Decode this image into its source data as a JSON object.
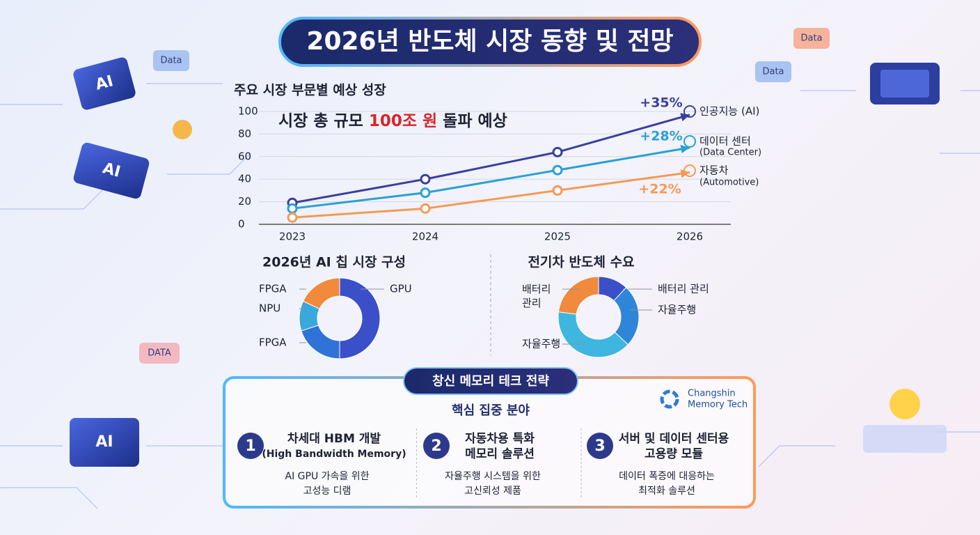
{
  "header": {
    "title": "2026년 반도체 시장 동향 및 전망"
  },
  "decorations": {
    "chip_labels": [
      "AI",
      "AI",
      "AI"
    ],
    "bubble_labels": [
      "Data",
      "DATA",
      "Data",
      "Data"
    ]
  },
  "chart_data": [
    {
      "type": "line",
      "title": "주요 시장 부문별 예상 성장",
      "subtitle": [
        "시장 총 규모 ",
        "100조 원",
        " 돌파 예상"
      ],
      "categories": [
        "2023",
        "2024",
        "2025",
        "2026"
      ],
      "ylim": [
        0,
        100
      ],
      "yticks": [
        0,
        20,
        40,
        60,
        80,
        100
      ],
      "grid": true,
      "series": [
        {
          "name": "인공지능 (AI)",
          "color": "#3b3f9e",
          "values": [
            19,
            40,
            64,
            97
          ],
          "growth_label": "+35%"
        },
        {
          "name": "데이터 센터",
          "name_en": "(Data Center)",
          "color": "#2aa0d4",
          "values": [
            14,
            28,
            48,
            68
          ],
          "growth_label": "+28%"
        },
        {
          "name": "자동차",
          "name_en": "(Automotive)",
          "color": "#f39a55",
          "values": [
            6,
            14,
            30,
            46
          ],
          "growth_label": "+22%"
        }
      ]
    },
    {
      "type": "pie",
      "donut": true,
      "title": "2026년 AI 칩 시장 구성",
      "categories": [
        "GPU",
        "FPGA",
        "NPU",
        "FPGA"
      ],
      "values": [
        50,
        20,
        12,
        18
      ],
      "colors": [
        "#3a4fc8",
        "#2f72d8",
        "#3aa8dc",
        "#f08a3c"
      ]
    },
    {
      "type": "pie",
      "donut": true,
      "title": "전기차 반도체 수요",
      "categories": [
        "배터리 관리",
        "자율주행",
        "자율주행",
        "배터리 관리"
      ],
      "values": [
        12,
        25,
        40,
        23
      ],
      "colors": [
        "#3a4fc8",
        "#2f86d8",
        "#3fb6df",
        "#f08a3c"
      ]
    }
  ],
  "strategy": {
    "title": "창신 메모리 테크 전략",
    "logo": [
      "Changshin",
      "Memory Tech"
    ],
    "subtitle": "핵심 집중 분야",
    "items": [
      {
        "number": "1",
        "title": [
          "차세대 HBM 개발",
          "(High Bandwidth Memory)"
        ],
        "desc": [
          "AI GPU 가속을 위한",
          "고성능 디램"
        ]
      },
      {
        "number": "2",
        "title": [
          "자동차용 특화",
          "메모리 솔루션"
        ],
        "desc": [
          "자율주행 시스템을 위한",
          "고신뢰성 제품"
        ]
      },
      {
        "number": "3",
        "title": [
          "서버 및 데이터 센터용",
          "고용량 모듈"
        ],
        "desc": [
          "데이터 폭증에 대응하는",
          "최적화 솔루션"
        ]
      }
    ]
  }
}
